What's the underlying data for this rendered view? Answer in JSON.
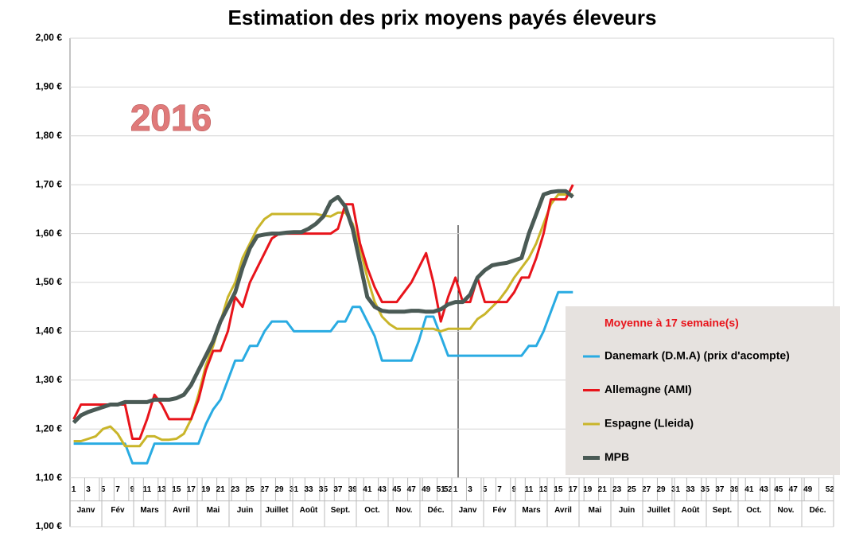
{
  "chart_data": {
    "type": "line",
    "title": "Estimation des prix moyens payés éleveurs",
    "annotation": "2016",
    "legend_title": "Moyenne à  17 semaine(s)",
    "categories": [
      "1",
      null,
      "3",
      null,
      "5",
      null,
      "7",
      null,
      "9",
      null,
      "11",
      null,
      "13",
      null,
      "15",
      null,
      "17",
      null,
      "19",
      null,
      "21",
      null,
      "23",
      null,
      "25",
      null,
      "27",
      null,
      "29",
      null,
      "31",
      null,
      "33",
      null,
      "35",
      null,
      "37",
      null,
      "39",
      null,
      "41",
      null,
      "43",
      null,
      "45",
      null,
      "47",
      null,
      "49",
      null,
      "51",
      "52",
      "1",
      null,
      "3",
      null,
      "5",
      null,
      "7",
      null,
      "9",
      null,
      "11",
      null,
      "13",
      null,
      "15",
      null,
      "17",
      null,
      "19",
      null,
      "21",
      null,
      "23",
      null,
      "25",
      null,
      "27",
      null,
      "29",
      null,
      "31",
      null,
      "33",
      null,
      "35",
      null,
      "37",
      null,
      "39",
      null,
      "41",
      null,
      "43",
      null,
      "45",
      null,
      "47",
      null,
      "49",
      null,
      null,
      "52"
    ],
    "months": [
      "Janv",
      "Fév",
      "Mars",
      "Avril",
      "Mai",
      "Juin",
      "Juillet",
      "Août",
      "Sept.",
      "Oct.",
      "Nov.",
      "Déc.",
      "Janv",
      "Fév",
      "Mars",
      "Avril",
      "Mai",
      "Juin",
      "Juillet",
      "Août",
      "Sept.",
      "Oct.",
      "Nov.",
      "Déc."
    ],
    "series": [
      {
        "name": "Danemark (D.M.A) (prix d'acompte)",
        "color": "#29abe2",
        "values": [
          1.17,
          1.17,
          1.17,
          1.17,
          1.17,
          1.17,
          1.17,
          1.17,
          1.13,
          1.13,
          1.13,
          1.17,
          1.17,
          1.17,
          1.17,
          1.17,
          1.17,
          1.17,
          1.21,
          1.24,
          1.26,
          1.3,
          1.34,
          1.34,
          1.37,
          1.37,
          1.4,
          1.42,
          1.42,
          1.42,
          1.4,
          1.4,
          1.4,
          1.4,
          1.4,
          1.4,
          1.42,
          1.42,
          1.45,
          1.45,
          1.42,
          1.39,
          1.34,
          1.34,
          1.34,
          1.34,
          1.34,
          1.38,
          1.43,
          1.43,
          1.39,
          1.35,
          1.35,
          1.35,
          1.35,
          1.35,
          1.35,
          1.35,
          1.35,
          1.35,
          1.35,
          1.35,
          1.37,
          1.37,
          1.4,
          1.44,
          1.48,
          1.48,
          1.48,
          null,
          null,
          null,
          null,
          null,
          null,
          null,
          null,
          null,
          null,
          null,
          null,
          null,
          null,
          null,
          null,
          null,
          null,
          null,
          null,
          null,
          null,
          null,
          null,
          null,
          null,
          null,
          null,
          null,
          null,
          null,
          null,
          null,
          null,
          null
        ]
      },
      {
        "name": "Allemagne (AMI)",
        "color": "#e8141b",
        "values": [
          1.22,
          1.25,
          1.25,
          1.25,
          1.25,
          1.25,
          1.25,
          1.25,
          1.18,
          1.18,
          1.22,
          1.27,
          1.25,
          1.22,
          1.22,
          1.22,
          1.22,
          1.26,
          1.32,
          1.36,
          1.36,
          1.4,
          1.47,
          1.45,
          1.5,
          1.53,
          1.56,
          1.59,
          1.6,
          1.6,
          1.6,
          1.6,
          1.6,
          1.6,
          1.6,
          1.6,
          1.61,
          1.66,
          1.66,
          1.58,
          1.53,
          1.49,
          1.46,
          1.46,
          1.46,
          1.48,
          1.5,
          1.53,
          1.56,
          1.5,
          1.42,
          1.47,
          1.51,
          1.46,
          1.46,
          1.51,
          1.46,
          1.46,
          1.46,
          1.46,
          1.48,
          1.51,
          1.51,
          1.55,
          1.6,
          1.67,
          1.67,
          1.67,
          1.7,
          null,
          null,
          null,
          null,
          null,
          null,
          null,
          null,
          null,
          null,
          null,
          null,
          null,
          null,
          null,
          null,
          null,
          null,
          null,
          null,
          null,
          null,
          null,
          null,
          null,
          null,
          null,
          null,
          null,
          null,
          null,
          null,
          null,
          null,
          null
        ]
      },
      {
        "name": "Espagne (Lleida)",
        "color": "#c9b52a",
        "values": [
          1.175,
          1.175,
          1.18,
          1.185,
          1.2,
          1.205,
          1.19,
          1.165,
          1.165,
          1.165,
          1.185,
          1.185,
          1.178,
          1.178,
          1.18,
          1.19,
          1.22,
          1.27,
          1.33,
          1.37,
          1.42,
          1.47,
          1.5,
          1.55,
          1.58,
          1.61,
          1.63,
          1.64,
          1.64,
          1.64,
          1.64,
          1.64,
          1.64,
          1.64,
          1.637,
          1.635,
          1.643,
          1.643,
          1.62,
          1.57,
          1.51,
          1.46,
          1.43,
          1.415,
          1.405,
          1.405,
          1.405,
          1.405,
          1.405,
          1.405,
          1.4,
          1.405,
          1.405,
          1.405,
          1.405,
          1.425,
          1.435,
          1.45,
          1.465,
          1.485,
          1.51,
          1.53,
          1.55,
          1.58,
          1.62,
          1.66,
          1.68,
          1.68,
          1.68,
          null,
          null,
          null,
          null,
          null,
          null,
          null,
          null,
          null,
          null,
          null,
          null,
          null,
          null,
          null,
          null,
          null,
          null,
          null,
          null,
          null,
          null,
          null,
          null,
          null,
          null,
          null,
          null,
          null,
          null,
          null,
          null,
          null,
          null,
          null
        ]
      },
      {
        "name": "MPB",
        "color": "#4a5a55",
        "values": [
          1.213,
          1.228,
          1.235,
          1.24,
          1.245,
          1.25,
          1.25,
          1.255,
          1.255,
          1.255,
          1.255,
          1.26,
          1.26,
          1.26,
          1.263,
          1.27,
          1.29,
          1.32,
          1.35,
          1.38,
          1.42,
          1.45,
          1.48,
          1.53,
          1.57,
          1.595,
          1.598,
          1.6,
          1.6,
          1.602,
          1.603,
          1.603,
          1.61,
          1.62,
          1.635,
          1.665,
          1.675,
          1.655,
          1.61,
          1.54,
          1.47,
          1.45,
          1.442,
          1.44,
          1.44,
          1.44,
          1.442,
          1.442,
          1.44,
          1.44,
          1.445,
          1.455,
          1.46,
          1.46,
          1.475,
          1.51,
          1.525,
          1.535,
          1.538,
          1.54,
          1.545,
          1.55,
          1.6,
          1.64,
          1.68,
          1.685,
          1.687,
          1.687,
          1.675,
          null,
          null,
          null,
          null,
          null,
          null,
          null,
          null,
          null,
          null,
          null,
          null,
          null,
          null,
          null,
          null,
          null,
          null,
          null,
          null,
          null,
          null,
          null,
          null,
          null,
          null,
          null,
          null,
          null,
          null,
          null,
          null,
          null,
          null,
          null
        ]
      }
    ],
    "ylim": [
      1.0,
      2.0
    ],
    "yticks": [
      {
        "value": 1.0,
        "label": "1,00 €"
      },
      {
        "value": 1.1,
        "label": "1,10 €"
      },
      {
        "value": 1.2,
        "label": "1,20 €"
      },
      {
        "value": 1.3,
        "label": "1,30 €"
      },
      {
        "value": 1.4,
        "label": "1,40 €"
      },
      {
        "value": 1.5,
        "label": "1,50 €"
      },
      {
        "value": 1.6,
        "label": "1,60 €"
      },
      {
        "value": 1.7,
        "label": "1,70 €"
      },
      {
        "value": 1.8,
        "label": "1,80 €"
      },
      {
        "value": 1.9,
        "label": "1,90 €"
      },
      {
        "value": 2.0,
        "label": "2,00 €"
      }
    ],
    "grid": true
  }
}
